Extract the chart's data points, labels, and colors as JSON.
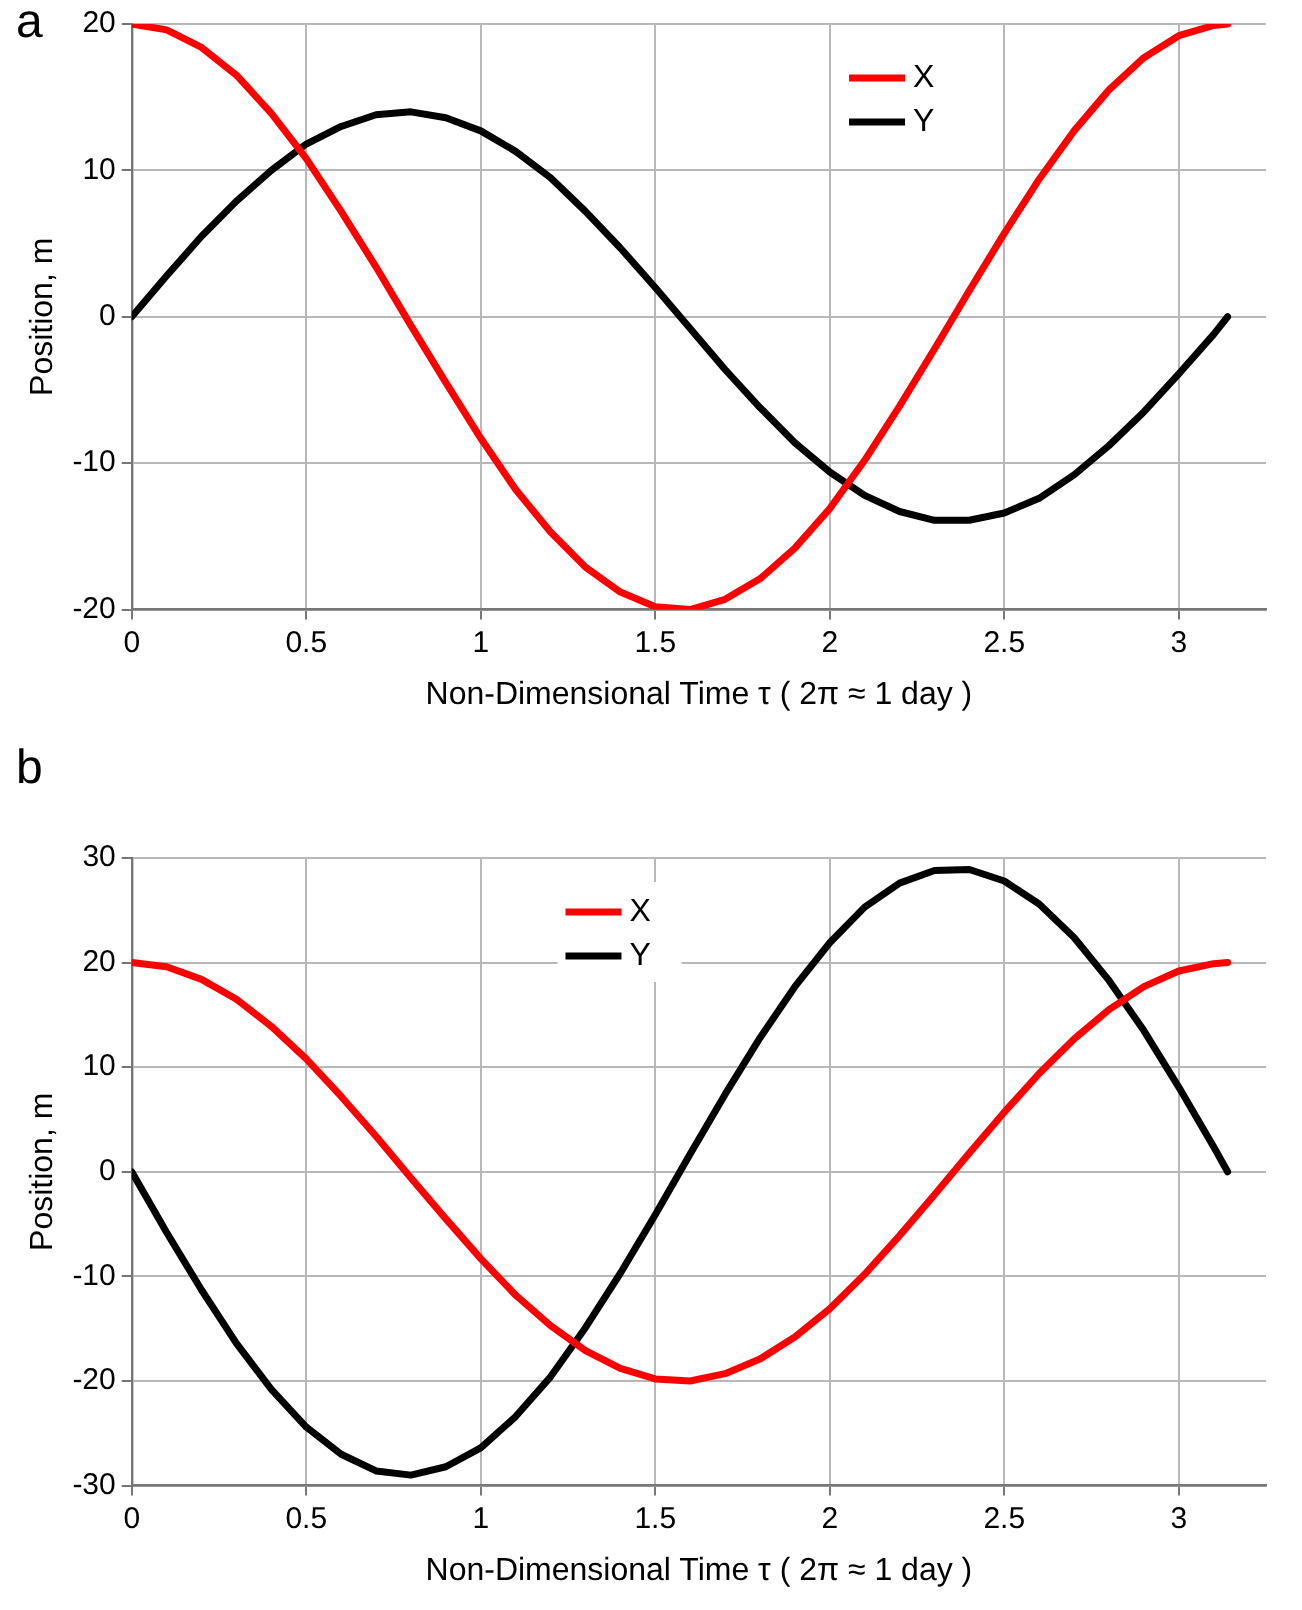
{
  "chart_data": [
    {
      "type": "line",
      "title": "a",
      "xlabel": "Non-Dimensional Time τ ( 2π ≈ 1 day )",
      "ylabel": "Position, m",
      "x": [
        0,
        0.1,
        0.2,
        0.3,
        0.4,
        0.5,
        0.6,
        0.7,
        0.8,
        0.9,
        1.0,
        1.1,
        1.2,
        1.3,
        1.4,
        1.5,
        1.6,
        1.7,
        1.8,
        1.9,
        2.0,
        2.1,
        2.2,
        2.3,
        2.4,
        2.5,
        2.6,
        2.7,
        2.8,
        2.9,
        3.0,
        3.1,
        3.14
      ],
      "series": [
        {
          "name": "X",
          "color": "#ff0000",
          "values": [
            20,
            19.6,
            18.4,
            16.5,
            13.9,
            10.8,
            7.2,
            3.4,
            -0.6,
            -4.5,
            -8.3,
            -11.8,
            -14.7,
            -17.1,
            -18.8,
            -19.8,
            -20,
            -19.3,
            -17.9,
            -15.8,
            -13.1,
            -9.8,
            -6.1,
            -2.2,
            1.8,
            5.7,
            9.4,
            12.7,
            15.5,
            17.7,
            19.2,
            19.9,
            20
          ]
        },
        {
          "name": "Y",
          "color": "#000000",
          "values": [
            0,
            2.8,
            5.5,
            7.9,
            10.0,
            11.8,
            13.0,
            13.8,
            14,
            13.6,
            12.7,
            11.3,
            9.5,
            7.2,
            4.7,
            2.0,
            -0.8,
            -3.6,
            -6.2,
            -8.6,
            -10.6,
            -12.2,
            -13.3,
            -13.9,
            -13.9,
            -13.4,
            -12.4,
            -10.8,
            -8.8,
            -6.5,
            -3.9,
            -1.2,
            0
          ]
        }
      ],
      "xlim": [
        0,
        3.25
      ],
      "xticks": [
        0,
        0.5,
        1,
        1.5,
        2,
        2.5,
        3
      ],
      "ylim": [
        -20,
        20
      ],
      "yticks": [
        -20,
        -10,
        0,
        10,
        20
      ],
      "grid": true,
      "legend": "top right",
      "line_style": "solid",
      "marker": "none"
    },
    {
      "type": "line",
      "title": "b",
      "xlabel": "Non-Dimensional Time τ ( 2π ≈ 1 day )",
      "ylabel": "Position, m",
      "x": [
        0,
        0.1,
        0.2,
        0.3,
        0.4,
        0.5,
        0.6,
        0.7,
        0.8,
        0.9,
        1.0,
        1.1,
        1.2,
        1.3,
        1.4,
        1.5,
        1.6,
        1.7,
        1.8,
        1.9,
        2.0,
        2.1,
        2.2,
        2.3,
        2.4,
        2.5,
        2.6,
        2.7,
        2.8,
        2.9,
        3.0,
        3.1,
        3.14
      ],
      "series": [
        {
          "name": "X",
          "color": "#ff0000",
          "values": [
            20,
            19.6,
            18.4,
            16.5,
            13.9,
            10.8,
            7.2,
            3.4,
            -0.6,
            -4.5,
            -8.3,
            -11.8,
            -14.7,
            -17.1,
            -18.8,
            -19.8,
            -20,
            -19.3,
            -17.9,
            -15.8,
            -13.1,
            -9.8,
            -6.1,
            -2.2,
            1.8,
            5.7,
            9.4,
            12.7,
            15.5,
            17.7,
            19.2,
            19.9,
            20
          ]
        },
        {
          "name": "Y",
          "color": "#000000",
          "values": [
            0,
            -5.8,
            -11.3,
            -16.4,
            -20.8,
            -24.4,
            -27.0,
            -28.6,
            -29.0,
            -28.2,
            -26.4,
            -23.4,
            -19.6,
            -14.9,
            -9.7,
            -4.1,
            1.7,
            7.4,
            12.8,
            17.7,
            21.9,
            25.3,
            27.6,
            28.8,
            28.9,
            27.8,
            25.6,
            22.4,
            18.3,
            13.5,
            8.1,
            2.4,
            0
          ]
        }
      ],
      "xlim": [
        0,
        3.25
      ],
      "xticks": [
        0,
        0.5,
        1,
        1.5,
        2,
        2.5,
        3
      ],
      "ylim": [
        -30,
        30
      ],
      "yticks": [
        -30,
        -20,
        -10,
        0,
        10,
        20,
        30
      ],
      "grid": true,
      "legend": "top",
      "line_style": "solid",
      "marker": "none"
    }
  ]
}
